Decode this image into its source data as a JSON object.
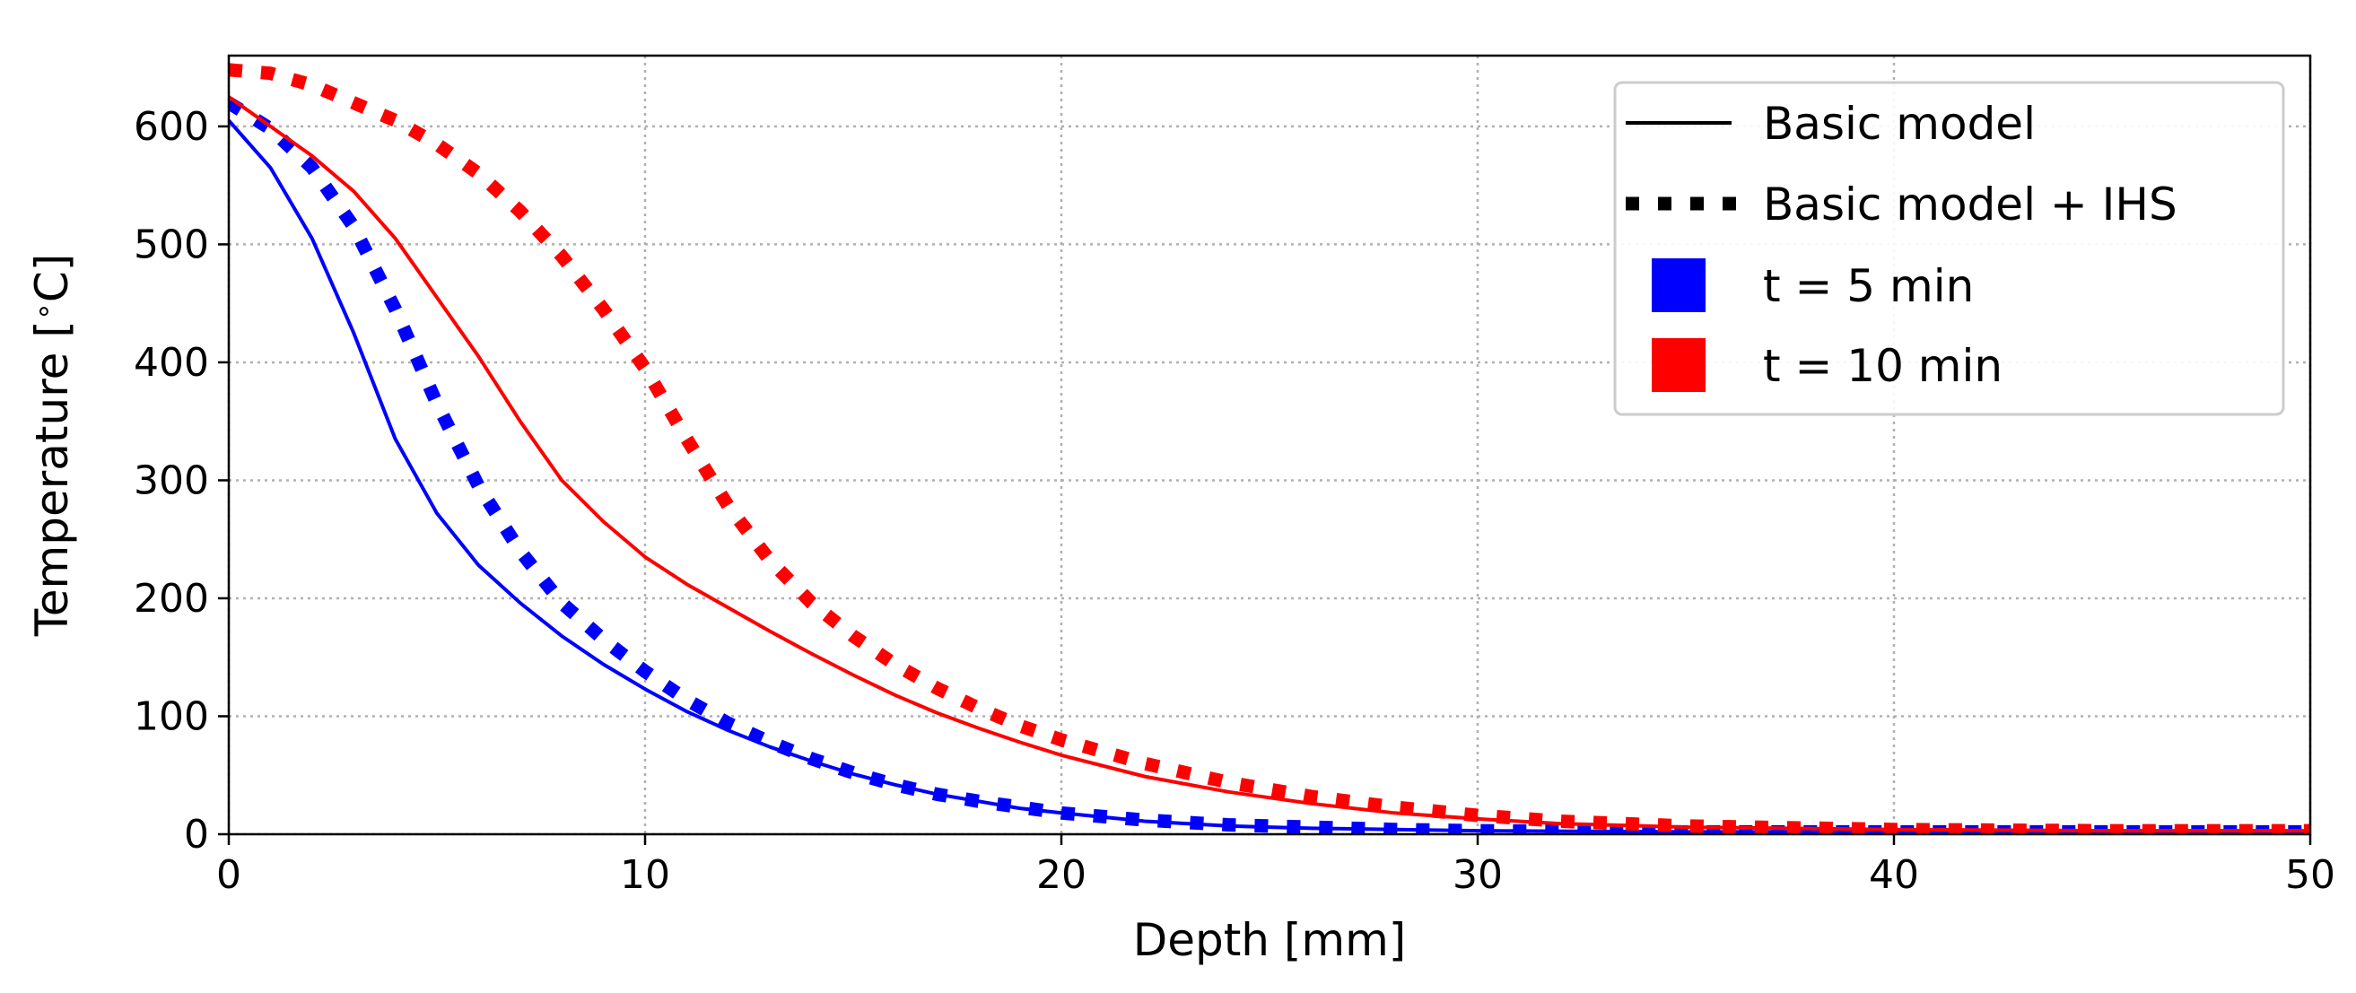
{
  "chart_data": {
    "type": "line",
    "title": "",
    "xlabel": "Depth [mm]",
    "ylabel_main": "Temperature [",
    "ylabel_degree": "∘",
    "ylabel_unit": "C]",
    "xlim": [
      0,
      50
    ],
    "ylim": [
      0,
      660
    ],
    "xticks": [
      0,
      10,
      20,
      30,
      40,
      50
    ],
    "yticks": [
      0,
      100,
      200,
      300,
      400,
      500,
      600
    ],
    "grid": true,
    "legend_position": "top-right",
    "legend": [
      {
        "label": "Basic model",
        "kind": "solid-line",
        "color": "#000000"
      },
      {
        "label": "Basic model + IHS",
        "kind": "dotted-line",
        "color": "#000000"
      },
      {
        "label": "t = 5 min",
        "kind": "patch",
        "color": "#0000ff"
      },
      {
        "label": "t = 10 min",
        "kind": "patch",
        "color": "#ff0000"
      }
    ],
    "series": [
      {
        "name": "Basic model, t = 5 min",
        "color": "#0000ff",
        "style": "solid",
        "x": [
          0,
          1,
          2,
          3,
          4,
          5,
          6,
          7,
          8,
          9,
          10,
          11,
          12,
          13,
          14,
          15,
          16,
          17,
          18,
          19,
          20,
          22,
          24,
          26,
          28,
          30,
          35,
          40,
          45,
          50
        ],
        "y": [
          605,
          565,
          505,
          425,
          335,
          272,
          228,
          196,
          168,
          144,
          123,
          104,
          88,
          74,
          62,
          51,
          42,
          34,
          28,
          22,
          18,
          11,
          7,
          5,
          4,
          3,
          2,
          2,
          2,
          2
        ]
      },
      {
        "name": "Basic model + IHS, t = 5 min",
        "color": "#0000ff",
        "style": "dotted",
        "x": [
          0,
          1,
          2,
          3,
          4,
          5,
          6,
          7,
          8,
          9,
          10,
          11,
          12,
          13,
          14,
          15,
          16,
          17,
          18,
          19,
          20,
          22,
          24,
          26,
          28,
          30,
          35,
          40,
          45,
          50
        ],
        "y": [
          620,
          598,
          565,
          515,
          445,
          365,
          295,
          240,
          196,
          165,
          138,
          114,
          94,
          78,
          64,
          52,
          42,
          34,
          28,
          23,
          18,
          12,
          8,
          6,
          4,
          3,
          2,
          2,
          2,
          2
        ]
      },
      {
        "name": "Basic model, t = 10 min",
        "color": "#ff0000",
        "style": "solid",
        "x": [
          0,
          1,
          2,
          3,
          4,
          5,
          6,
          7,
          8,
          9,
          10,
          11,
          12,
          13,
          14,
          15,
          16,
          17,
          18,
          19,
          20,
          22,
          24,
          26,
          28,
          30,
          32,
          35,
          40,
          45,
          50
        ],
        "y": [
          625,
          600,
          575,
          545,
          505,
          455,
          405,
          350,
          300,
          265,
          235,
          212,
          192,
          172,
          153,
          135,
          118,
          103,
          90,
          78,
          67,
          49,
          36,
          26,
          18,
          13,
          9,
          6,
          4,
          3,
          3
        ]
      },
      {
        "name": "Basic model + IHS, t = 10 min",
        "color": "#ff0000",
        "style": "dotted",
        "x": [
          0,
          1,
          2,
          3,
          4,
          5,
          6,
          7,
          8,
          9,
          10,
          11,
          12,
          13,
          14,
          15,
          16,
          17,
          18,
          19,
          20,
          22,
          24,
          26,
          28,
          30,
          32,
          35,
          40,
          45,
          50
        ],
        "y": [
          648,
          645,
          635,
          620,
          605,
          585,
          560,
          528,
          490,
          445,
          395,
          335,
          278,
          232,
          196,
          168,
          144,
          124,
          107,
          92,
          80,
          60,
          44,
          32,
          23,
          16,
          11,
          7,
          4,
          3,
          3
        ]
      }
    ]
  }
}
